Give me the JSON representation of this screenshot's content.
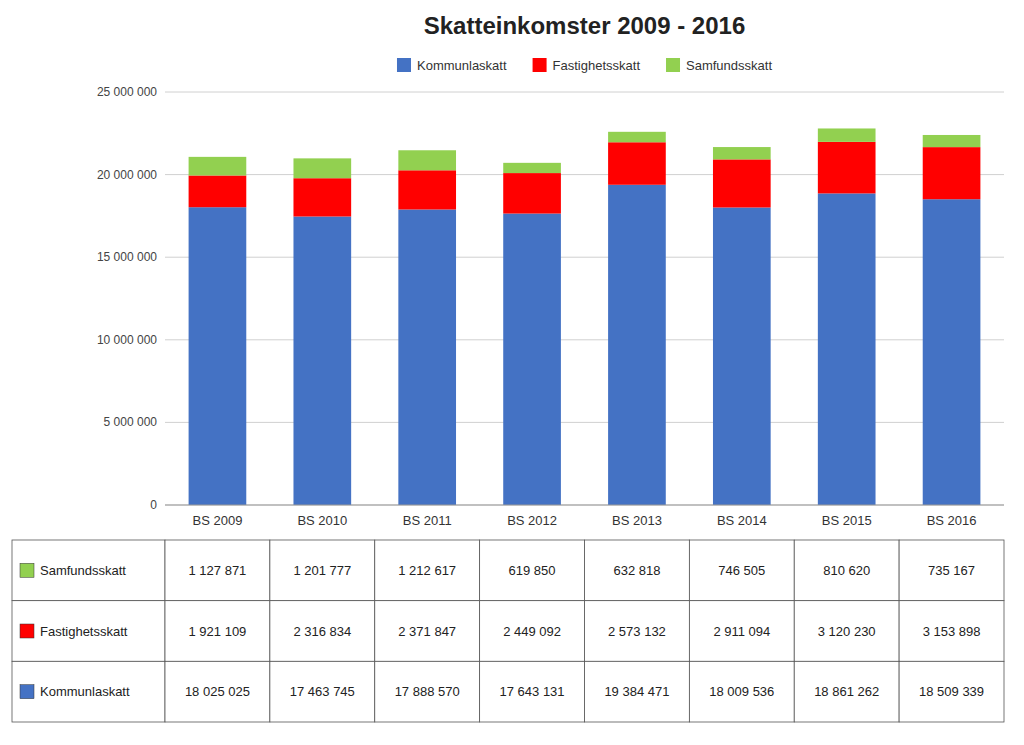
{
  "chart_data": {
    "type": "bar",
    "title": "Skatteinkomster 2009 - 2016",
    "categories": [
      "BS 2009",
      "BS 2010",
      "BS 2011",
      "BS 2012",
      "BS 2013",
      "BS 2014",
      "BS 2015",
      "BS 2016"
    ],
    "stacked": true,
    "grid": true,
    "legend": "top",
    "ylim": [
      0,
      25000000
    ],
    "yticks": [
      0,
      {
        "value": 5000000,
        "label": "5 000 000"
      },
      {
        "value": 10000000,
        "label": "10 000 000"
      },
      {
        "value": 15000000,
        "label": "15 000 000"
      },
      {
        "value": 20000000,
        "label": "20 000 000"
      },
      {
        "value": 25000000,
        "label": "25 000 000"
      }
    ],
    "series": [
      {
        "name": "Kommunlaskatt",
        "color": "#4472C4",
        "values": [
          18025025,
          17463745,
          17888570,
          17643131,
          19384471,
          18009536,
          18861262,
          18509339
        ],
        "value_labels": [
          "18 025 025",
          "17 463 745",
          "17 888 570",
          "17 643 131",
          "19 384 471",
          "18 009 536",
          "18 861 262",
          "18 509 339"
        ]
      },
      {
        "name": "Fastighetsskatt",
        "color": "#FF0000",
        "values": [
          1921109,
          2316834,
          2371847,
          2449092,
          2573132,
          2911094,
          3120230,
          3153898
        ],
        "value_labels": [
          "1 921 109",
          "2 316 834",
          "2 371 847",
          "2 449 092",
          "2 573 132",
          "2 911 094",
          "3 120 230",
          "3 153 898"
        ]
      },
      {
        "name": "Samfundsskatt",
        "color": "#92D050",
        "values": [
          1127871,
          1201777,
          1212617,
          619850,
          632818,
          746505,
          810620,
          735167
        ],
        "value_labels": [
          "1 127 871",
          "1 201 777",
          "1 212 617",
          "619 850",
          "632 818",
          "746 505",
          "810 620",
          "735 167"
        ]
      }
    ]
  }
}
